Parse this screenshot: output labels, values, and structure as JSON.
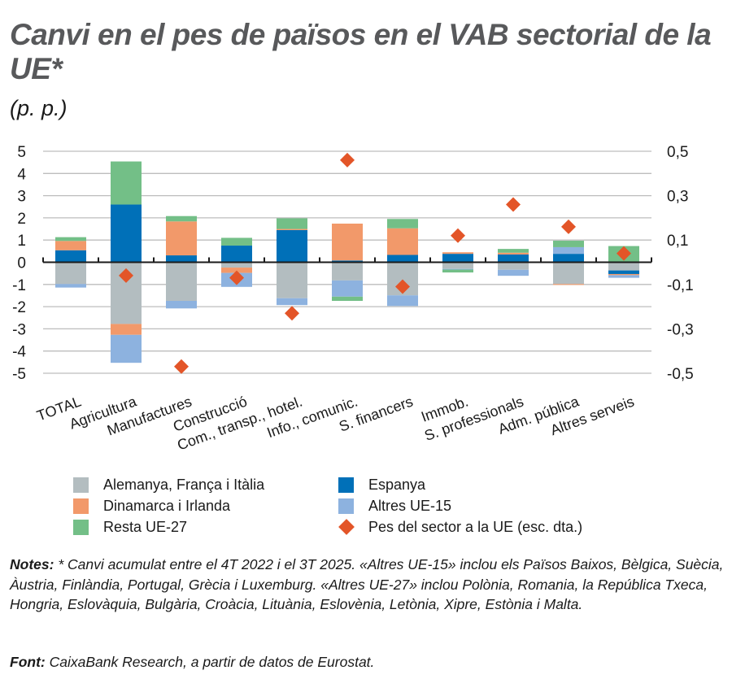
{
  "header": {
    "title": "Canvi en el pes de països en el VAB sectorial de la UE*",
    "subtitle": "(p. p.)"
  },
  "colors": {
    "Alemanya, França i Itàlia": "#b3bdc0",
    "Dinamarca i Irlanda": "#f2996a",
    "Resta UE-27": "#73bf87",
    "Espanya": "#0070b8",
    "Altres UE-15": "#8db2df",
    "Pes del sector a la UE (esc. dta.)": "#e35528",
    "gridline": "#bdbdbd",
    "axis": "#1a1a1a",
    "title": "#58595b"
  },
  "legend": {
    "items": [
      {
        "label": "Alemanya, França i Itàlia",
        "shape": "square"
      },
      {
        "label": "Dinamarca i Irlanda",
        "shape": "square"
      },
      {
        "label": "Resta UE-27",
        "shape": "square"
      },
      {
        "label": "Espanya",
        "shape": "square"
      },
      {
        "label": "Altres UE-15",
        "shape": "square"
      },
      {
        "label": "Pes del sector a la UE (esc. dta.)",
        "shape": "diamond"
      }
    ]
  },
  "notes": {
    "notes_label": "Notes:",
    "notes_text": "* Canvi acumulat entre el 4T 2022 i el 3T 2025. «Altres UE-15» inclou els Països Baixos, Bèlgica, Suècia, Àustria, Finlàndia, Portugal, Grècia i Luxemburg. «Altres UE-27» inclou Polònia, Romania, la República Txeca, Hongria, Eslovàquia, Bulgària, Croàcia, Lituània, Eslovènia, Letònia, Xipre, Estònia i Malta.",
    "source_label": "Font:",
    "source_text": "CaixaBank Research, a partir de datos de Eurostat."
  },
  "chart_data": {
    "type": "bar",
    "stacked": true,
    "title": "Canvi en el pes de països en el VAB sectorial de la UE*",
    "subtitle": "(p. p.)",
    "xlabel": "",
    "ylabel": "p. p.",
    "ylim": [
      -5,
      5
    ],
    "yticks": [
      5,
      4,
      3,
      2,
      1,
      0,
      -1,
      -2,
      -3,
      -4,
      -5
    ],
    "y2lim": [
      -0.5,
      0.5
    ],
    "y2ticks_labels": [
      "0,5",
      "0,3",
      "0,1",
      "-0,1",
      "-0,3",
      "-0,5"
    ],
    "y2ticks": [
      0.5,
      0.3,
      0.1,
      -0.1,
      -0.3,
      -0.5
    ],
    "grid": true,
    "legend_position": "bottom",
    "categories": [
      "TOTAL",
      "Agricultura",
      "Manufactures",
      "Construcció",
      "Com., transp., hotel.",
      "Info., comunic.",
      "S. financers",
      "Immob.",
      "S. professionals",
      "Adm. pública",
      "Altres serveis"
    ],
    "series": [
      {
        "name": "Alemanya, França i Itàlia",
        "axis": "left",
        "values": [
          -0.98,
          -2.78,
          -1.74,
          -0.24,
          -1.62,
          -0.82,
          -1.49,
          -0.3,
          -0.34,
          -0.98,
          -0.37
        ]
      },
      {
        "name": "Espanya",
        "axis": "left",
        "values": [
          0.54,
          2.6,
          0.31,
          0.75,
          1.45,
          0.08,
          0.33,
          0.38,
          0.35,
          0.38,
          -0.16
        ]
      },
      {
        "name": "Dinamarca i Irlanda",
        "axis": "left",
        "values": [
          0.42,
          -0.49,
          1.53,
          -0.24,
          0.05,
          1.66,
          1.2,
          0.07,
          0.08,
          -0.04,
          -0.05
        ]
      },
      {
        "name": "Altres UE-15",
        "axis": "left",
        "values": [
          -0.16,
          -1.26,
          -0.34,
          -0.63,
          -0.31,
          -0.73,
          -0.48,
          -0.03,
          -0.27,
          0.3,
          -0.12
        ]
      },
      {
        "name": "Resta UE-27",
        "axis": "left",
        "values": [
          0.17,
          1.94,
          0.24,
          0.35,
          0.48,
          -0.19,
          0.42,
          -0.13,
          0.17,
          0.29,
          0.73
        ]
      },
      {
        "name": "Pes del sector a la UE (esc. dta.)",
        "axis": "right",
        "type": "scatter",
        "marker": "diamond",
        "values": [
          null,
          -0.06,
          -0.47,
          -0.07,
          -0.23,
          0.46,
          -0.11,
          0.12,
          0.26,
          0.16,
          0.04
        ]
      }
    ]
  }
}
